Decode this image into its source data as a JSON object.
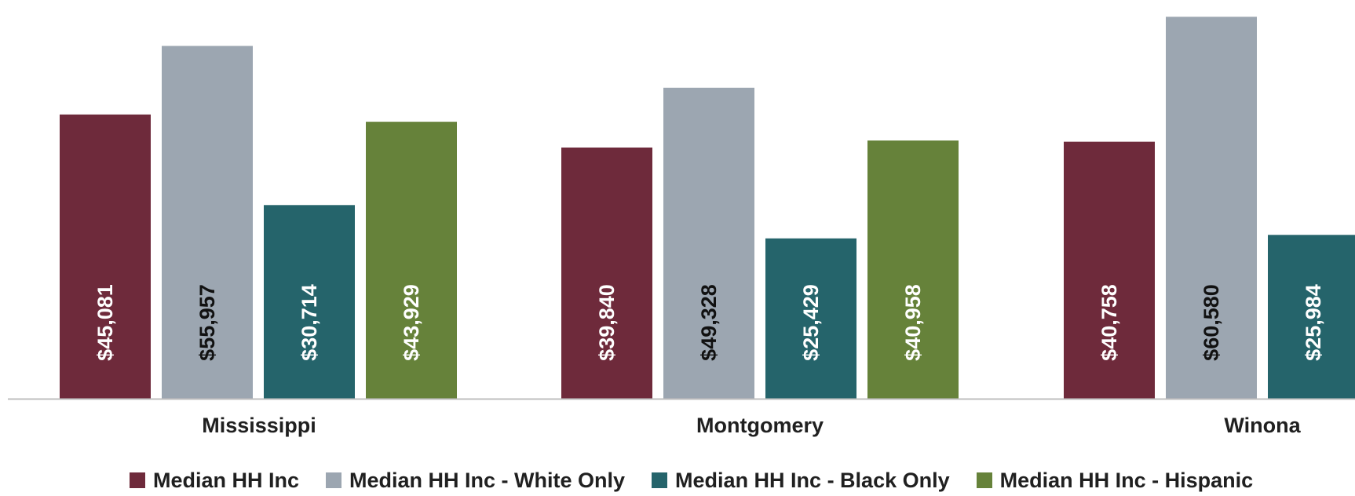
{
  "chart_data": {
    "type": "bar",
    "categories": [
      "Mississippi",
      "Montgomery",
      "Winona"
    ],
    "series": [
      {
        "name": "Median HH Inc",
        "color": "#6e2a3b",
        "label_color": "#ffffff",
        "values": [
          45081,
          39840,
          40758
        ],
        "labels": [
          "$45,081",
          "$39,840",
          "$40,758"
        ]
      },
      {
        "name": "Median HH Inc - White Only",
        "color": "#9ca6b1",
        "label_color": "#111111",
        "values": [
          55957,
          49328,
          60580
        ],
        "labels": [
          "$55,957",
          "$49,328",
          "$60,580"
        ]
      },
      {
        "name": "Median HH Inc - Black Only",
        "color": "#25646b",
        "label_color": "#ffffff",
        "values": [
          30714,
          25429,
          25984
        ],
        "labels": [
          "$30,714",
          "$25,429",
          "$25,984"
        ]
      },
      {
        "name": "Median HH Inc - Hispanic",
        "color": "#66823a",
        "label_color": "#ffffff",
        "values": [
          43929,
          40958,
          null
        ],
        "labels": [
          "$43,929",
          "$40,958",
          ""
        ]
      }
    ],
    "ylim": [
      0,
      62000
    ],
    "grid": false,
    "legend_position": "bottom"
  }
}
